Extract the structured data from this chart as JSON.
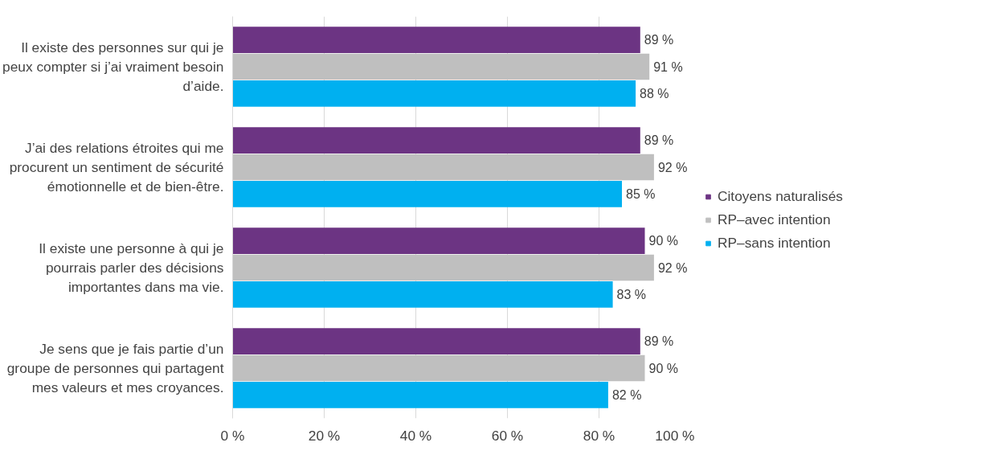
{
  "chart_data": {
    "type": "bar",
    "orientation": "horizontal",
    "categories": [
      "Il existe des personnes sur qui je peux compter si j’ai vraiment besoin d’aide.",
      "J’ai des relations étroites qui me procurent un sentiment de sécurité émotionnelle et de bien-être.",
      "Il existe une personne à qui je pourrais parler des décisions importantes dans ma vie.",
      "Je sens que je fais partie d’un groupe de personnes qui partagent mes valeurs et mes croyances."
    ],
    "series": [
      {
        "name": "Citoyens naturalisés",
        "color": "#6c3483",
        "values": [
          89,
          89,
          90,
          89
        ],
        "value_labels": [
          "89 %",
          "89 %",
          "90 %",
          "89 %"
        ]
      },
      {
        "name": "RP–avec intention",
        "color": "#bfbfbf",
        "values": [
          91,
          92,
          92,
          90
        ],
        "value_labels": [
          "91 %",
          "92 %",
          "92 %",
          "90 %"
        ]
      },
      {
        "name": "RP–sans intention",
        "color": "#00b0f0",
        "values": [
          88,
          85,
          83,
          82
        ],
        "value_labels": [
          "88 %",
          "85 %",
          "83 %",
          "82 %"
        ]
      }
    ],
    "xlim": [
      0,
      100
    ],
    "xticks": [
      {
        "value": 0,
        "label": "0 %"
      },
      {
        "value": 20,
        "label": "20 %"
      },
      {
        "value": 40,
        "label": "40 %"
      },
      {
        "value": 60,
        "label": "60 %"
      },
      {
        "value": 80,
        "label": "80 %"
      },
      {
        "value": 100,
        "label": "100 %"
      }
    ],
    "grid": "x",
    "legend": "right"
  }
}
